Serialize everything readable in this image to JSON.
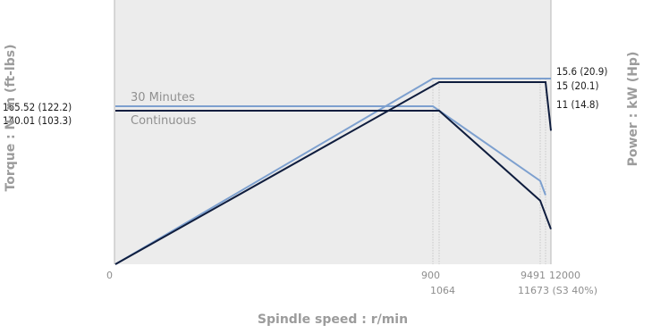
{
  "chart_data": {
    "type": "line",
    "xlabel": "Spindle speed : r/min",
    "ylabel_left": "Torque : N· m (ft-lbs)",
    "ylabel_right": "Power : kW (Hp)",
    "x_tick_labels": {
      "origin": "0",
      "t900": "900",
      "t1064": "1064",
      "t9491": "9491",
      "t12000": "12000",
      "t11673": "11673 (S3 40%)"
    },
    "left_tick_labels": {
      "torque_30min": "165.52 (122.2)",
      "torque_cont": "140.01 (103.3)"
    },
    "right_tick_labels": {
      "power_30min": "15.6 (20.9)",
      "power_cont": "15 (20.1)",
      "power_end": "11 (14.8)"
    },
    "series_labels": {
      "thirty_min": "30 Minutes",
      "continuous": "Continuous"
    },
    "colors": {
      "plot_bg": "#ececec",
      "thirty_min": "#7da0cf",
      "continuous": "#0f1d3e",
      "gridline": "#c8c8c8"
    },
    "series": [
      {
        "name": "30 Minutes",
        "kind": "torque",
        "points": [
          [
            0,
            165.52
          ],
          [
            900,
            165.52
          ],
          [
            9491,
            76
          ],
          [
            11673,
            63
          ]
        ]
      },
      {
        "name": "Continuous",
        "kind": "torque",
        "points": [
          [
            0,
            140.01
          ],
          [
            1064,
            140.01
          ],
          [
            9491,
            58
          ],
          [
            12000,
            32
          ]
        ]
      },
      {
        "name": "30 Minutes",
        "kind": "power",
        "points": [
          [
            0,
            0
          ],
          [
            900,
            15.6
          ],
          [
            11673,
            15.6
          ],
          [
            12000,
            15.6
          ]
        ]
      },
      {
        "name": "Continuous",
        "kind": "power",
        "points": [
          [
            0,
            0
          ],
          [
            1064,
            15
          ],
          [
            11673,
            15
          ],
          [
            12000,
            11
          ]
        ]
      }
    ]
  }
}
